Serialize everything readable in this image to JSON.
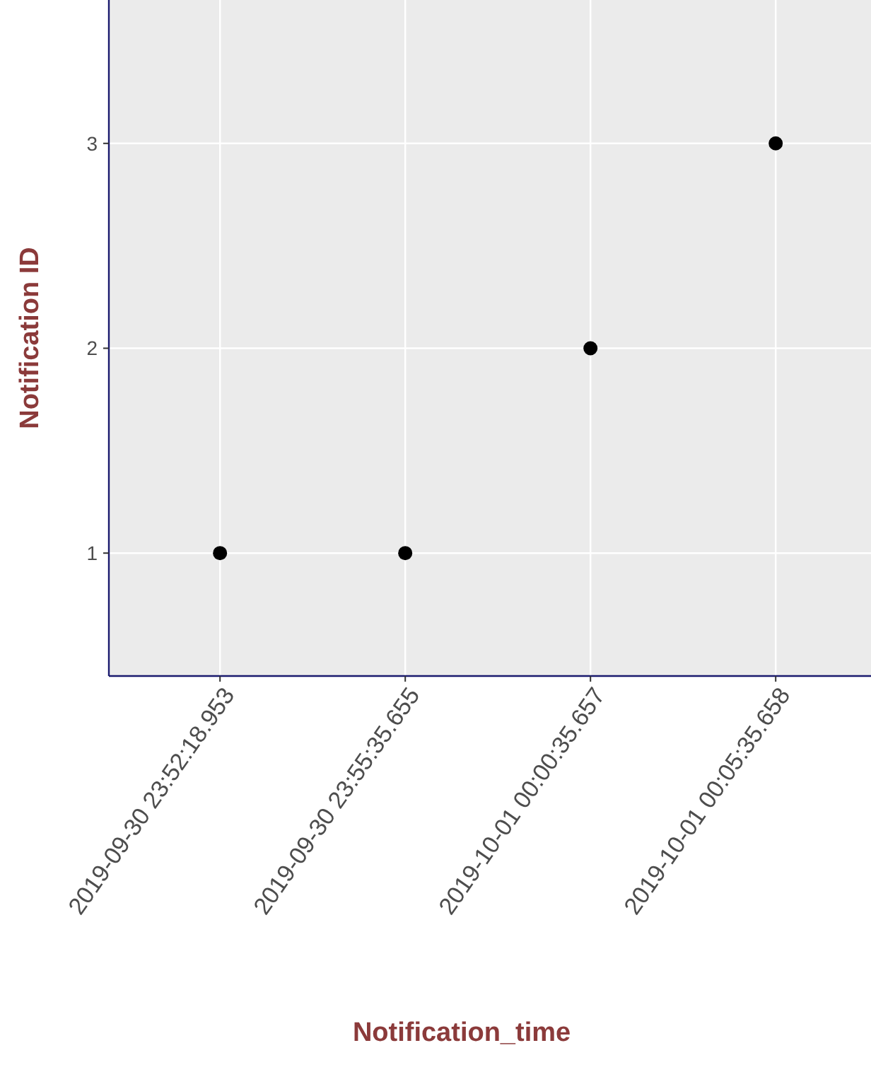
{
  "chart_data": {
    "type": "scatter",
    "xlabel": "Notification_time",
    "ylabel": "Notification ID",
    "categories": [
      "2019-09-30 23:52:18.953",
      "2019-09-30 23:55:35.655",
      "2019-10-01 00:00:35.657",
      "2019-10-01 00:05:35.658"
    ],
    "series": [
      {
        "color": "#000000",
        "values": [
          1,
          1,
          2,
          3
        ]
      }
    ],
    "ylim": [
      0.4,
      3.7
    ],
    "yticks": [
      1,
      2,
      3
    ],
    "grid": true,
    "marker": "circle"
  }
}
